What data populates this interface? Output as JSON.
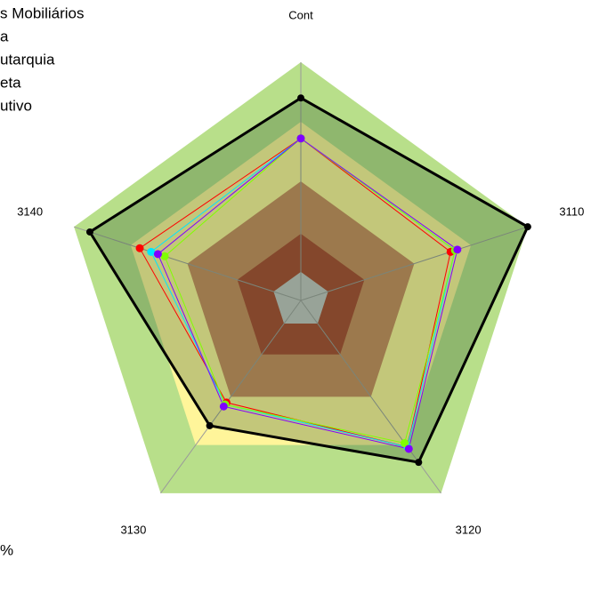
{
  "chart_data": {
    "type": "radar",
    "categories": [
      "Cont",
      "3110",
      "3120",
      "3130",
      "3140"
    ],
    "rlim": [
      0,
      100
    ],
    "bands": [
      {
        "to": 100,
        "color": "#b8df8a"
      },
      {
        "to": 75,
        "color": "#fff59a"
      },
      {
        "to": 50,
        "color": "#c98a5c"
      },
      {
        "to": 28,
        "color": "#a8442e"
      },
      {
        "to": 12,
        "color": "#c4c4c4"
      }
    ],
    "series": [
      {
        "name": "s Mobiliários",
        "color": "#ff0000",
        "values": [
          68,
          66,
          76,
          53,
          71
        ]
      },
      {
        "name": "a",
        "color": "#00e5ff",
        "values": [
          68,
          68,
          76,
          54,
          66
        ]
      },
      {
        "name": "utarquia",
        "color": "#80ff00",
        "values": [
          68,
          68,
          74,
          54,
          60
        ]
      },
      {
        "name": "eta",
        "color": "#000000",
        "values": [
          85,
          100,
          84,
          65,
          93
        ]
      },
      {
        "name": "utivo",
        "color": "#8000ff",
        "values": [
          68,
          69,
          77,
          55,
          63
        ]
      }
    ],
    "note": "%"
  }
}
